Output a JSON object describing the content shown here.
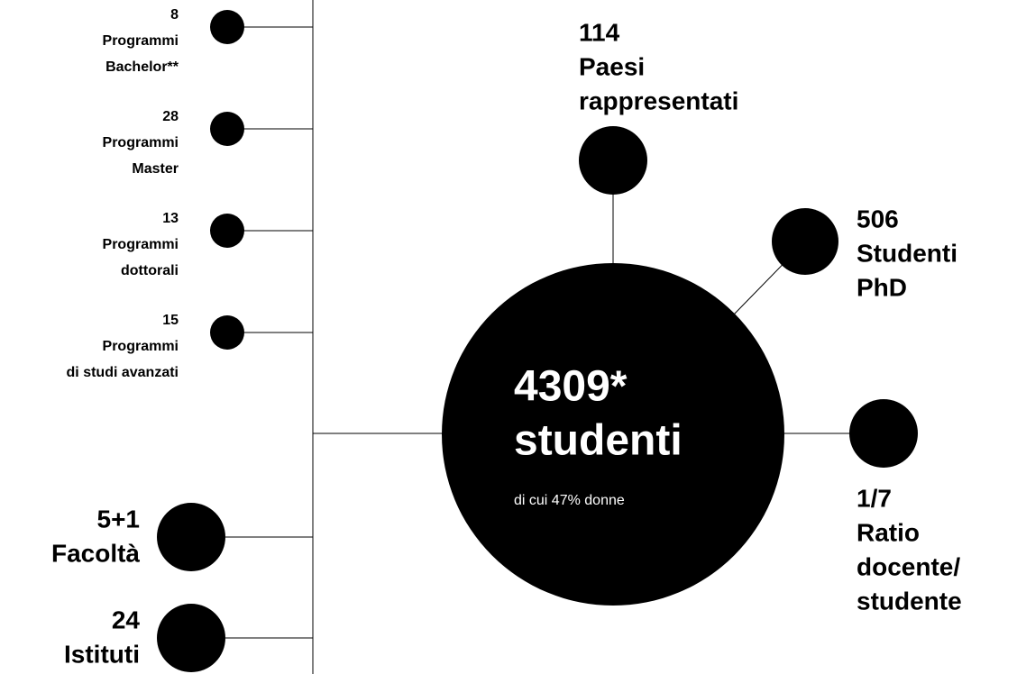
{
  "programs": [
    {
      "count": "8",
      "lines": [
        "Programmi",
        "Bachelor**"
      ]
    },
    {
      "count": "28",
      "lines": [
        "Programmi",
        "Master"
      ]
    },
    {
      "count": "13",
      "lines": [
        "Programmi",
        "dottorali"
      ]
    },
    {
      "count": "15",
      "lines": [
        "Programmi",
        "di studi avanzati"
      ]
    }
  ],
  "units": [
    {
      "count": "5+1",
      "label": "Facoltà"
    },
    {
      "count": "24",
      "label": "Istituti"
    }
  ],
  "center": {
    "count": "4309*",
    "label": "studenti",
    "note": "di cui 47% donne"
  },
  "stats": [
    {
      "count": "114",
      "lines": [
        "Paesi",
        "rappresentati"
      ]
    },
    {
      "count": "506",
      "lines": [
        "Studenti",
        "PhD"
      ]
    },
    {
      "count": "1/7",
      "lines": [
        "Ratio",
        "docente/",
        "studente"
      ]
    }
  ]
}
